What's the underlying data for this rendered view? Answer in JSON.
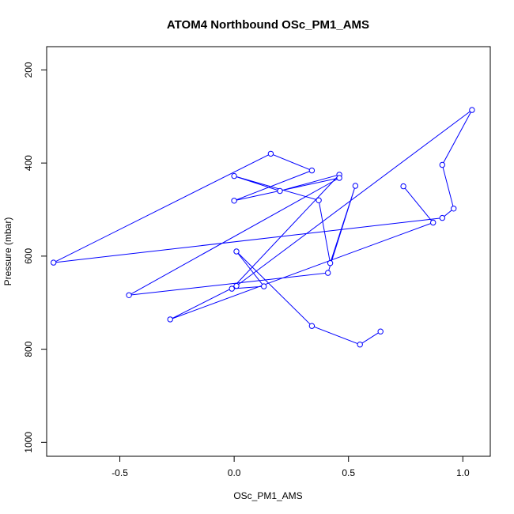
{
  "chart_data": {
    "type": "line",
    "title": "ATOM4 Northbound OSc_PM1_AMS",
    "xlabel": "OSc_PM1_AMS",
    "ylabel": "Pressure (mbar)",
    "xlim": [
      -0.82,
      1.12
    ],
    "ylim": [
      1030,
      150
    ],
    "y_reversed": true,
    "x_ticks": [
      -0.5,
      0.0,
      0.5,
      1.0
    ],
    "x_tick_labels": [
      "-0.5",
      "0.0",
      "0.5",
      "1.0"
    ],
    "y_ticks": [
      200,
      400,
      600,
      800,
      1000
    ],
    "y_tick_labels": [
      "200",
      "400",
      "600",
      "800",
      "1000"
    ],
    "series": [
      {
        "color": "#0000ff",
        "marker": "open-circle",
        "x": [
          0.64,
          0.55,
          0.34,
          0.01,
          0.13,
          -0.01,
          0.46,
          0.2,
          0.0,
          0.37,
          0.42,
          0.53,
          0.41,
          -0.46,
          0.46,
          0.0,
          0.34,
          0.16,
          -0.79,
          0.91,
          0.96,
          0.91,
          1.04,
          0.01,
          -0.28,
          0.87,
          0.74
        ],
        "y": [
          762,
          790,
          750,
          590,
          665,
          670,
          425,
          460,
          428,
          480,
          615,
          449,
          636,
          684,
          432,
          481,
          416,
          380,
          614,
          518,
          498,
          404,
          286,
          664,
          736,
          528,
          450
        ]
      }
    ],
    "grid": false,
    "legend": "none"
  }
}
